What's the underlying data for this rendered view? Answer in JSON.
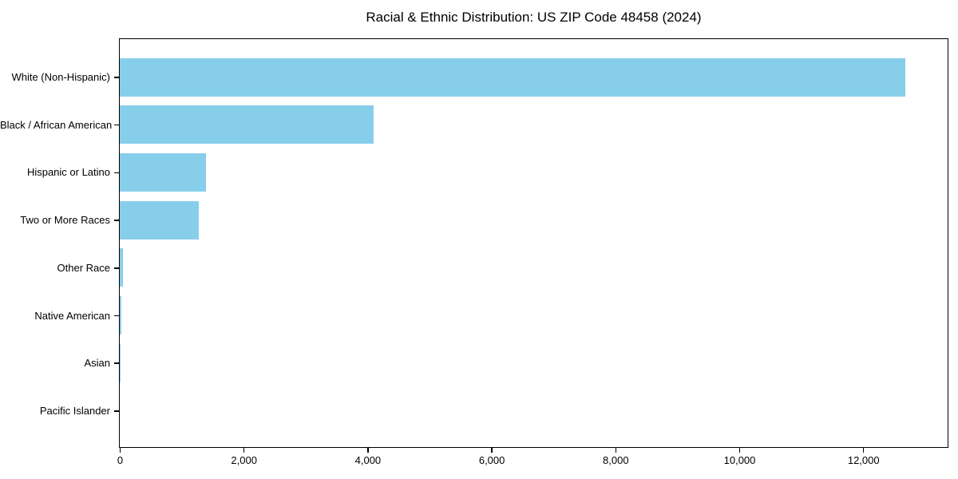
{
  "page": {
    "background": "#ffffff"
  },
  "chart_data": {
    "type": "bar",
    "orientation": "horizontal",
    "title": "Racial & Ethnic Distribution: US ZIP Code 48458 (2024)",
    "categories": [
      "White (Non-Hispanic)",
      "Black / African American",
      "Hispanic or Latino",
      "Two or More Races",
      "Other Race",
      "Native American",
      "Asian",
      "Pacific Islander"
    ],
    "values": [
      12680,
      4100,
      1390,
      1270,
      50,
      20,
      5,
      0
    ],
    "bar_color": "#87ceeb",
    "text_color": "#000000",
    "spine_color": "#000000",
    "xlabel": "",
    "ylabel": "",
    "xlim": [
      0,
      13350
    ],
    "x_ticks": [
      0,
      2000,
      4000,
      6000,
      8000,
      10000,
      12000
    ],
    "x_tick_labels": [
      "0",
      "2,000",
      "4,000",
      "6,000",
      "8,000",
      "10,000",
      "12,000"
    ],
    "grid": false,
    "legend": null,
    "plot_border": true
  }
}
